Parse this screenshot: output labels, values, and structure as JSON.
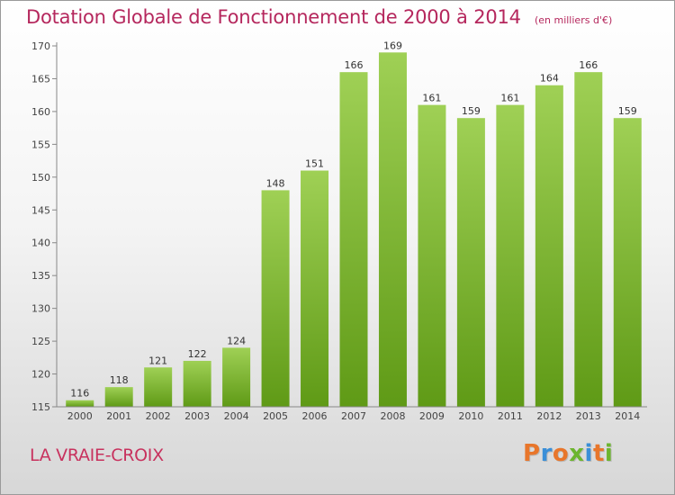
{
  "header": {
    "title": "Dotation Globale de Fonctionnement de 2000 à 2014",
    "subtitle": "(en milliers d'€)"
  },
  "footer": {
    "commune": "LA VRAIE-CROIX",
    "brand": "Proxiti"
  },
  "colors": {
    "title": "#b5275d",
    "bar_light": "#9fd055",
    "bar_dark": "#5f9a16",
    "brand_letters": [
      "#e8762b",
      "#3a8fd8",
      "#e8762b",
      "#6cb52e",
      "#3a8fd8",
      "#e8762b",
      "#6cb52e"
    ]
  },
  "chart_data": {
    "type": "bar",
    "categories": [
      "2000",
      "2001",
      "2002",
      "2003",
      "2004",
      "2005",
      "2006",
      "2007",
      "2008",
      "2009",
      "2010",
      "2011",
      "2012",
      "2013",
      "2014"
    ],
    "values": [
      116,
      118,
      121,
      122,
      124,
      148,
      151,
      166,
      169,
      161,
      159,
      161,
      164,
      166,
      159
    ],
    "ylim": [
      115,
      170
    ],
    "yticks": [
      115,
      120,
      125,
      130,
      135,
      140,
      145,
      150,
      155,
      160,
      165,
      170
    ],
    "grid": false,
    "data_labels": true
  }
}
